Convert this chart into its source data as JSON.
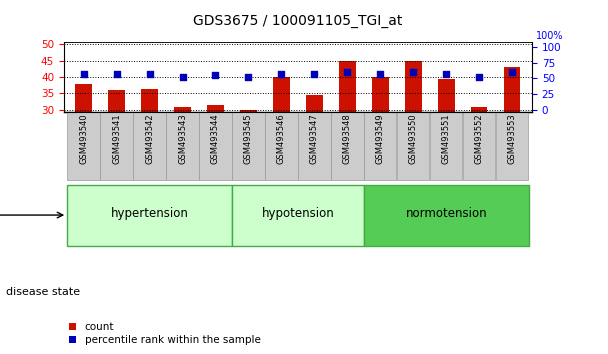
{
  "title": "GDS3675 / 100091105_TGI_at",
  "samples": [
    "GSM493540",
    "GSM493541",
    "GSM493542",
    "GSM493543",
    "GSM493544",
    "GSM493545",
    "GSM493546",
    "GSM493547",
    "GSM493548",
    "GSM493549",
    "GSM493550",
    "GSM493551",
    "GSM493552",
    "GSM493553"
  ],
  "counts": [
    38.0,
    36.0,
    36.5,
    31.0,
    31.5,
    30.0,
    40.0,
    34.5,
    45.0,
    40.0,
    45.0,
    39.5,
    31.0,
    43.0
  ],
  "percentiles_left": [
    41.0,
    41.0,
    41.0,
    40.0,
    40.5,
    40.0,
    41.0,
    41.0,
    41.5,
    41.0,
    41.5,
    41.0,
    40.0,
    41.5
  ],
  "ylim_left": [
    29.5,
    50.5
  ],
  "ylim_right": [
    -2.38,
    107.14
  ],
  "yticks_left": [
    30,
    35,
    40,
    45,
    50
  ],
  "yticks_right": [
    0,
    25,
    50,
    75,
    100
  ],
  "bar_color": "#CC1100",
  "dot_color": "#0000BB",
  "groups": [
    {
      "label": "hypertension",
      "start": 0,
      "end": 5,
      "facecolor": "#ccffcc",
      "edgecolor": "#44aa44"
    },
    {
      "label": "hypotension",
      "start": 5,
      "end": 9,
      "facecolor": "#ccffcc",
      "edgecolor": "#44aa44"
    },
    {
      "label": "normotension",
      "start": 9,
      "end": 14,
      "facecolor": "#55cc55",
      "edgecolor": "#44aa44"
    }
  ],
  "group_label": "disease state",
  "legend_count": "count",
  "legend_percentile": "percentile rank within the sample",
  "tick_bg_color": "#cccccc",
  "tick_edge_color": "#999999",
  "title_fontsize": 10,
  "axis_tick_fontsize": 7.5,
  "sample_fontsize": 6.0,
  "group_fontsize": 8.5,
  "legend_fontsize": 7.5
}
